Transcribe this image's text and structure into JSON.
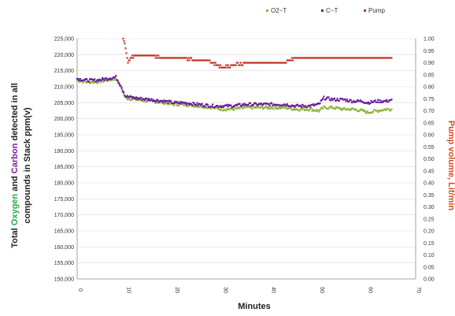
{
  "chart_data": {
    "type": "scatter",
    "title": "",
    "xlabel": "Minutes",
    "ylabel_parts": [
      {
        "text": "Total ",
        "color": "#222222"
      },
      {
        "text": "Oxygen",
        "color": "#2aa84a"
      },
      {
        "text": " and ",
        "color": "#222222"
      },
      {
        "text": "Carbon",
        "color": "#7b1fa2"
      },
      {
        "text": " detected in all",
        "color": "#222222"
      }
    ],
    "ylabel_line2": "compounds in Stack ppm(v)",
    "y2label": "Pump volume, Lit/min",
    "xlim": [
      0,
      70
    ],
    "ylim": [
      150000,
      225000
    ],
    "y2lim": [
      0,
      1.0
    ],
    "x_ticks": [
      "0",
      "10",
      "20",
      "30",
      "40",
      "50",
      "60",
      "70"
    ],
    "y_ticks": [
      "150,000",
      "155,000",
      "160,000",
      "165,000",
      "170,000",
      "175,000",
      "180,000",
      "185,000",
      "190,000",
      "195,000",
      "200,000",
      "205,000",
      "210,000",
      "215,000",
      "220,000",
      "225,000"
    ],
    "y2_ticks": [
      "0.00",
      "0.05",
      "0.10",
      "0.15",
      "0.20",
      "0.25",
      "0.30",
      "0.35",
      "0.40",
      "0.45",
      "0.50",
      "0.55",
      "0.60",
      "0.65",
      "0.70",
      "0.75",
      "0.80",
      "0.85",
      "0.90",
      "0.95",
      "1.00"
    ],
    "grid": true,
    "legend_position": "top-right",
    "series": [
      {
        "name": "O2~T",
        "color": "#8db33a",
        "axis": "left",
        "x": [
          0,
          2,
          4,
          6,
          8,
          9,
          10,
          12,
          15,
          18,
          20,
          22,
          25,
          28,
          30,
          32,
          35,
          38,
          40,
          43,
          45,
          48,
          50,
          51,
          53,
          55,
          57,
          59,
          60,
          62,
          64,
          65
        ],
        "y": [
          212000,
          211500,
          211500,
          212000,
          212500,
          210000,
          206500,
          206000,
          205500,
          205000,
          204500,
          204500,
          204000,
          203500,
          203000,
          203000,
          203500,
          203500,
          203500,
          203500,
          203000,
          203000,
          202500,
          203500,
          203500,
          203000,
          203000,
          202500,
          202000,
          202500,
          203000,
          203000
        ]
      },
      {
        "name": "C~T",
        "color": "#6a1b9a",
        "axis": "left",
        "x": [
          0,
          2,
          4,
          6,
          8,
          9,
          10,
          12,
          15,
          18,
          20,
          22,
          25,
          28,
          30,
          32,
          35,
          38,
          40,
          43,
          45,
          48,
          50,
          51,
          53,
          55,
          57,
          59,
          60,
          62,
          64,
          65
        ],
        "y": [
          212500,
          212000,
          212000,
          212500,
          213000,
          210500,
          207000,
          206500,
          206000,
          205500,
          205000,
          205000,
          204500,
          204000,
          204000,
          204000,
          204500,
          204500,
          204500,
          204500,
          204000,
          204000,
          204500,
          206500,
          206000,
          206000,
          205500,
          205500,
          205000,
          205500,
          205500,
          206000
        ]
      },
      {
        "name": "Pump",
        "color": "#c0392b",
        "axis": "right",
        "x": [
          9.5,
          10,
          10.5,
          11,
          12,
          15,
          18,
          20,
          22,
          25,
          27,
          28,
          29,
          30,
          32,
          35,
          38,
          40,
          43,
          45,
          48,
          50,
          53,
          55,
          58,
          60,
          62,
          64,
          65
        ],
        "y": [
          1.0,
          0.96,
          0.9,
          0.92,
          0.93,
          0.93,
          0.92,
          0.92,
          0.92,
          0.91,
          0.91,
          0.9,
          0.89,
          0.88,
          0.89,
          0.9,
          0.9,
          0.9,
          0.9,
          0.92,
          0.92,
          0.92,
          0.92,
          0.92,
          0.92,
          0.92,
          0.92,
          0.92,
          0.92
        ]
      }
    ]
  }
}
